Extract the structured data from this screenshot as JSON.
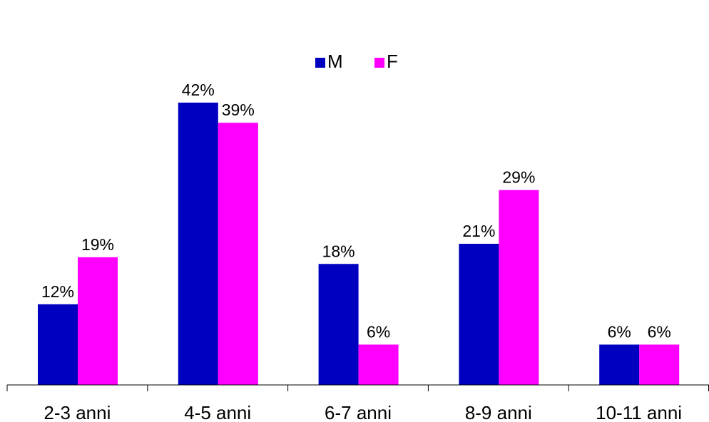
{
  "chart_data": {
    "type": "bar",
    "categories": [
      "2-3 anni",
      "4-5 anni",
      "6-7 anni",
      "8-9 anni",
      "10-11 anni"
    ],
    "series": [
      {
        "name": "M",
        "values": [
          12,
          42,
          18,
          21,
          6
        ],
        "labels": [
          "12%",
          "42%",
          "18%",
          "21%",
          "6%"
        ],
        "color": "#0000c0"
      },
      {
        "name": "F",
        "values": [
          19,
          39,
          6,
          29,
          6
        ],
        "labels": [
          "19%",
          "39%",
          "6%",
          "29%",
          "6%"
        ],
        "color": "#ff00ff"
      }
    ],
    "unit": "%",
    "ylim": [
      0,
      48
    ],
    "grid": false,
    "legend_position": "top-center",
    "title": "",
    "xlabel": "",
    "ylabel": ""
  }
}
